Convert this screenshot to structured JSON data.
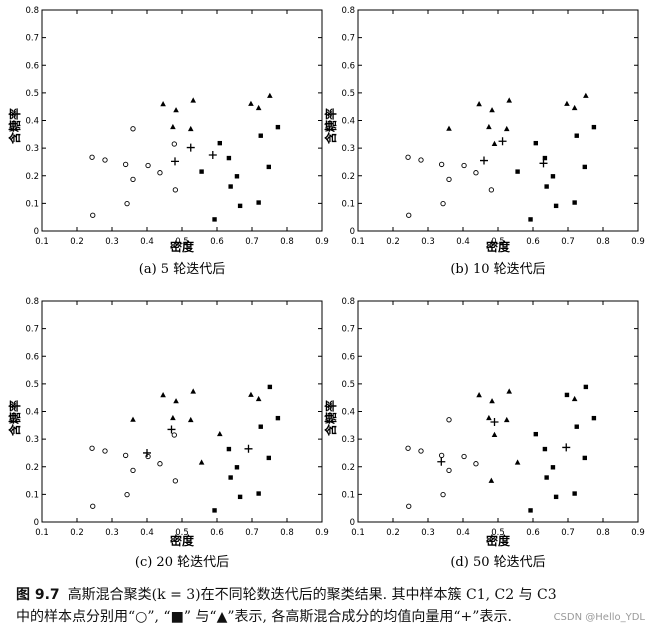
{
  "figure": {
    "number": "图 9.7",
    "caption_line1": "高斯混合聚类(k = 3)在不同轮数迭代后的聚类结果. 其中样本簇 C1, C2 与 C3",
    "caption_line2": "中的样本点分别用“○”, “■” 与“▲”表示, 各高斯混合成分的均值向量用“+”表示.",
    "watermark": "CSDN @Hello_YDL"
  },
  "chart_data": [
    {
      "type": "scatter",
      "title": "(a) 5 轮迭代后",
      "xlabel": "密度",
      "ylabel": "含糖率",
      "xlim": [
        0.1,
        0.9
      ],
      "ylim": [
        0,
        0.8
      ],
      "xticks": [
        "0.1",
        "0.2",
        "0.3",
        "0.4",
        "0.5",
        "0.6",
        "0.7",
        "0.8",
        "0.9"
      ],
      "yticks": [
        "0",
        "0.1",
        "0.2",
        "0.3",
        "0.4",
        "0.5",
        "0.6",
        "0.7",
        "0.8"
      ],
      "grid": false,
      "series": [
        {
          "marker": "circle",
          "points": [
            [
              0.243,
              0.267
            ],
            [
              0.245,
              0.057
            ],
            [
              0.28,
              0.257
            ],
            [
              0.343,
              0.099
            ],
            [
              0.339,
              0.241
            ],
            [
              0.36,
              0.37
            ],
            [
              0.36,
              0.187
            ],
            [
              0.403,
              0.237
            ],
            [
              0.437,
              0.211
            ],
            [
              0.481,
              0.149
            ],
            [
              0.478,
              0.315
            ]
          ]
        },
        {
          "marker": "square",
          "points": [
            [
              0.556,
              0.215
            ],
            [
              0.593,
              0.042
            ],
            [
              0.608,
              0.318
            ],
            [
              0.634,
              0.264
            ],
            [
              0.639,
              0.161
            ],
            [
              0.657,
              0.198
            ],
            [
              0.666,
              0.091
            ],
            [
              0.719,
              0.103
            ],
            [
              0.725,
              0.345
            ],
            [
              0.748,
              0.232
            ],
            [
              0.774,
              0.376
            ]
          ]
        },
        {
          "marker": "triangle",
          "points": [
            [
              0.446,
              0.459
            ],
            [
              0.474,
              0.376
            ],
            [
              0.483,
              0.437
            ],
            [
              0.525,
              0.369
            ],
            [
              0.532,
              0.472
            ],
            [
              0.697,
              0.46
            ],
            [
              0.719,
              0.445
            ],
            [
              0.751,
              0.489
            ]
          ]
        },
        {
          "marker": "plus",
          "points": [
            [
              0.48,
              0.252
            ],
            [
              0.525,
              0.302
            ],
            [
              0.588,
              0.275
            ]
          ]
        }
      ]
    },
    {
      "type": "scatter",
      "title": "(b) 10 轮迭代后",
      "xlabel": "密度",
      "ylabel": "含糖率",
      "xlim": [
        0.1,
        0.9
      ],
      "ylim": [
        0,
        0.8
      ],
      "xticks": [
        "0.1",
        "0.2",
        "0.3",
        "0.4",
        "0.5",
        "0.6",
        "0.7",
        "0.8",
        "0.9"
      ],
      "yticks": [
        "0",
        "0.1",
        "0.2",
        "0.3",
        "0.4",
        "0.5",
        "0.6",
        "0.7",
        "0.8"
      ],
      "grid": false,
      "series": [
        {
          "marker": "circle",
          "points": [
            [
              0.243,
              0.267
            ],
            [
              0.245,
              0.057
            ],
            [
              0.28,
              0.257
            ],
            [
              0.343,
              0.099
            ],
            [
              0.339,
              0.241
            ],
            [
              0.36,
              0.187
            ],
            [
              0.403,
              0.237
            ],
            [
              0.437,
              0.211
            ],
            [
              0.481,
              0.149
            ]
          ]
        },
        {
          "marker": "square",
          "points": [
            [
              0.556,
              0.215
            ],
            [
              0.593,
              0.042
            ],
            [
              0.608,
              0.318
            ],
            [
              0.634,
              0.264
            ],
            [
              0.639,
              0.161
            ],
            [
              0.657,
              0.198
            ],
            [
              0.666,
              0.091
            ],
            [
              0.719,
              0.103
            ],
            [
              0.725,
              0.345
            ],
            [
              0.748,
              0.232
            ],
            [
              0.774,
              0.376
            ]
          ]
        },
        {
          "marker": "triangle",
          "points": [
            [
              0.36,
              0.37
            ],
            [
              0.446,
              0.459
            ],
            [
              0.474,
              0.376
            ],
            [
              0.483,
              0.437
            ],
            [
              0.49,
              0.315
            ],
            [
              0.525,
              0.369
            ],
            [
              0.532,
              0.472
            ],
            [
              0.697,
              0.46
            ],
            [
              0.719,
              0.445
            ],
            [
              0.751,
              0.489
            ]
          ]
        },
        {
          "marker": "plus",
          "points": [
            [
              0.46,
              0.255
            ],
            [
              0.513,
              0.325
            ],
            [
              0.63,
              0.245
            ]
          ]
        }
      ]
    },
    {
      "type": "scatter",
      "title": "(c) 20 轮迭代后",
      "xlabel": "密度",
      "ylabel": "含糖率",
      "xlim": [
        0.1,
        0.9
      ],
      "ylim": [
        0,
        0.8
      ],
      "xticks": [
        "0.1",
        "0.2",
        "0.3",
        "0.4",
        "0.5",
        "0.6",
        "0.7",
        "0.8",
        "0.9"
      ],
      "yticks": [
        "0",
        "0.1",
        "0.2",
        "0.3",
        "0.4",
        "0.5",
        "0.6",
        "0.7",
        "0.8"
      ],
      "grid": false,
      "series": [
        {
          "marker": "circle",
          "points": [
            [
              0.243,
              0.267
            ],
            [
              0.245,
              0.057
            ],
            [
              0.28,
              0.257
            ],
            [
              0.343,
              0.099
            ],
            [
              0.339,
              0.241
            ],
            [
              0.36,
              0.187
            ],
            [
              0.403,
              0.237
            ],
            [
              0.437,
              0.211
            ],
            [
              0.481,
              0.149
            ],
            [
              0.478,
              0.315
            ]
          ]
        },
        {
          "marker": "square",
          "points": [
            [
              0.593,
              0.042
            ],
            [
              0.634,
              0.264
            ],
            [
              0.639,
              0.161
            ],
            [
              0.657,
              0.198
            ],
            [
              0.666,
              0.091
            ],
            [
              0.719,
              0.103
            ],
            [
              0.725,
              0.345
            ],
            [
              0.748,
              0.232
            ],
            [
              0.751,
              0.489
            ],
            [
              0.774,
              0.376
            ]
          ]
        },
        {
          "marker": "triangle",
          "points": [
            [
              0.36,
              0.37
            ],
            [
              0.446,
              0.459
            ],
            [
              0.474,
              0.376
            ],
            [
              0.483,
              0.437
            ],
            [
              0.525,
              0.369
            ],
            [
              0.532,
              0.472
            ],
            [
              0.556,
              0.215
            ],
            [
              0.608,
              0.318
            ],
            [
              0.697,
              0.46
            ],
            [
              0.719,
              0.445
            ]
          ]
        },
        {
          "marker": "plus",
          "points": [
            [
              0.4,
              0.25
            ],
            [
              0.47,
              0.335
            ],
            [
              0.69,
              0.265
            ]
          ]
        }
      ]
    },
    {
      "type": "scatter",
      "title": "(d) 50 轮迭代后",
      "xlabel": "密度",
      "ylabel": "含糖率",
      "xlim": [
        0.1,
        0.9
      ],
      "ylim": [
        0,
        0.8
      ],
      "xticks": [
        "0.1",
        "0.2",
        "0.3",
        "0.4",
        "0.5",
        "0.6",
        "0.7",
        "0.8",
        "0.9"
      ],
      "yticks": [
        "0",
        "0.1",
        "0.2",
        "0.3",
        "0.4",
        "0.5",
        "0.6",
        "0.7",
        "0.8"
      ],
      "grid": false,
      "series": [
        {
          "marker": "circle",
          "points": [
            [
              0.243,
              0.267
            ],
            [
              0.245,
              0.057
            ],
            [
              0.28,
              0.257
            ],
            [
              0.343,
              0.099
            ],
            [
              0.339,
              0.241
            ],
            [
              0.36,
              0.37
            ],
            [
              0.36,
              0.187
            ],
            [
              0.403,
              0.237
            ],
            [
              0.437,
              0.211
            ]
          ]
        },
        {
          "marker": "square",
          "points": [
            [
              0.593,
              0.042
            ],
            [
              0.608,
              0.318
            ],
            [
              0.634,
              0.264
            ],
            [
              0.639,
              0.161
            ],
            [
              0.657,
              0.198
            ],
            [
              0.666,
              0.091
            ],
            [
              0.697,
              0.46
            ],
            [
              0.719,
              0.103
            ],
            [
              0.725,
              0.345
            ],
            [
              0.748,
              0.232
            ],
            [
              0.751,
              0.489
            ],
            [
              0.774,
              0.376
            ]
          ]
        },
        {
          "marker": "triangle",
          "points": [
            [
              0.446,
              0.459
            ],
            [
              0.474,
              0.376
            ],
            [
              0.481,
              0.149
            ],
            [
              0.483,
              0.437
            ],
            [
              0.49,
              0.315
            ],
            [
              0.525,
              0.369
            ],
            [
              0.532,
              0.472
            ],
            [
              0.556,
              0.215
            ],
            [
              0.719,
              0.445
            ]
          ]
        },
        {
          "marker": "plus",
          "points": [
            [
              0.338,
              0.218
            ],
            [
              0.49,
              0.362
            ],
            [
              0.695,
              0.27
            ]
          ]
        }
      ]
    }
  ]
}
